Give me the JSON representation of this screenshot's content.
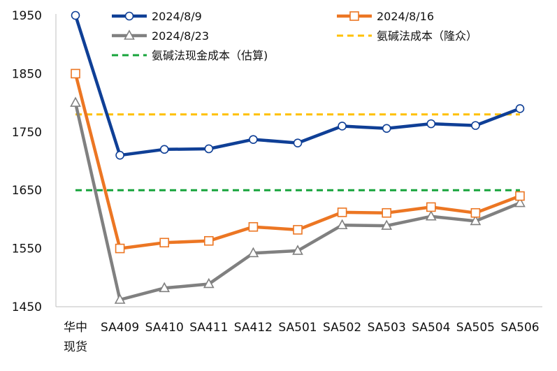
{
  "chart_data": {
    "type": "line",
    "categories": [
      [
        "华中",
        "现货"
      ],
      "SA409",
      "SA410",
      "SA411",
      "SA412",
      "SA501",
      "SA502",
      "SA503",
      "SA504",
      "SA505",
      "SA506"
    ],
    "ylim": [
      1450,
      1950
    ],
    "yticks": [
      1450,
      1550,
      1650,
      1750,
      1850,
      1950
    ],
    "grid": false,
    "legend_position": "top",
    "series": [
      {
        "name": "2024/8/9",
        "color": "#0f3f96",
        "marker": "circle",
        "style": "solid",
        "values": [
          1950,
          1710,
          1720,
          1721,
          1737,
          1731,
          1760,
          1756,
          1764,
          1761,
          1790
        ]
      },
      {
        "name": "2024/8/16",
        "color": "#ec7623",
        "marker": "square",
        "style": "solid",
        "values": [
          1850,
          1550,
          1560,
          1563,
          1587,
          1582,
          1612,
          1611,
          1621,
          1611,
          1640
        ]
      },
      {
        "name": "2024/8/23",
        "color": "#808080",
        "marker": "triangle",
        "style": "solid",
        "values": [
          1800,
          1462,
          1482,
          1489,
          1542,
          1546,
          1590,
          1589,
          1605,
          1597,
          1628
        ]
      },
      {
        "name": "氨碱法成本（隆众）",
        "color": "#ffc000",
        "marker": "none",
        "style": "dashed",
        "values": [
          1780,
          1780,
          1780,
          1780,
          1780,
          1780,
          1780,
          1780,
          1780,
          1780,
          1780
        ]
      },
      {
        "name": "氨碱法现金成本（估算)",
        "color": "#17a43b",
        "marker": "none",
        "style": "dashed",
        "values": [
          1650,
          1650,
          1650,
          1650,
          1650,
          1650,
          1650,
          1650,
          1650,
          1650,
          1650
        ]
      }
    ]
  }
}
